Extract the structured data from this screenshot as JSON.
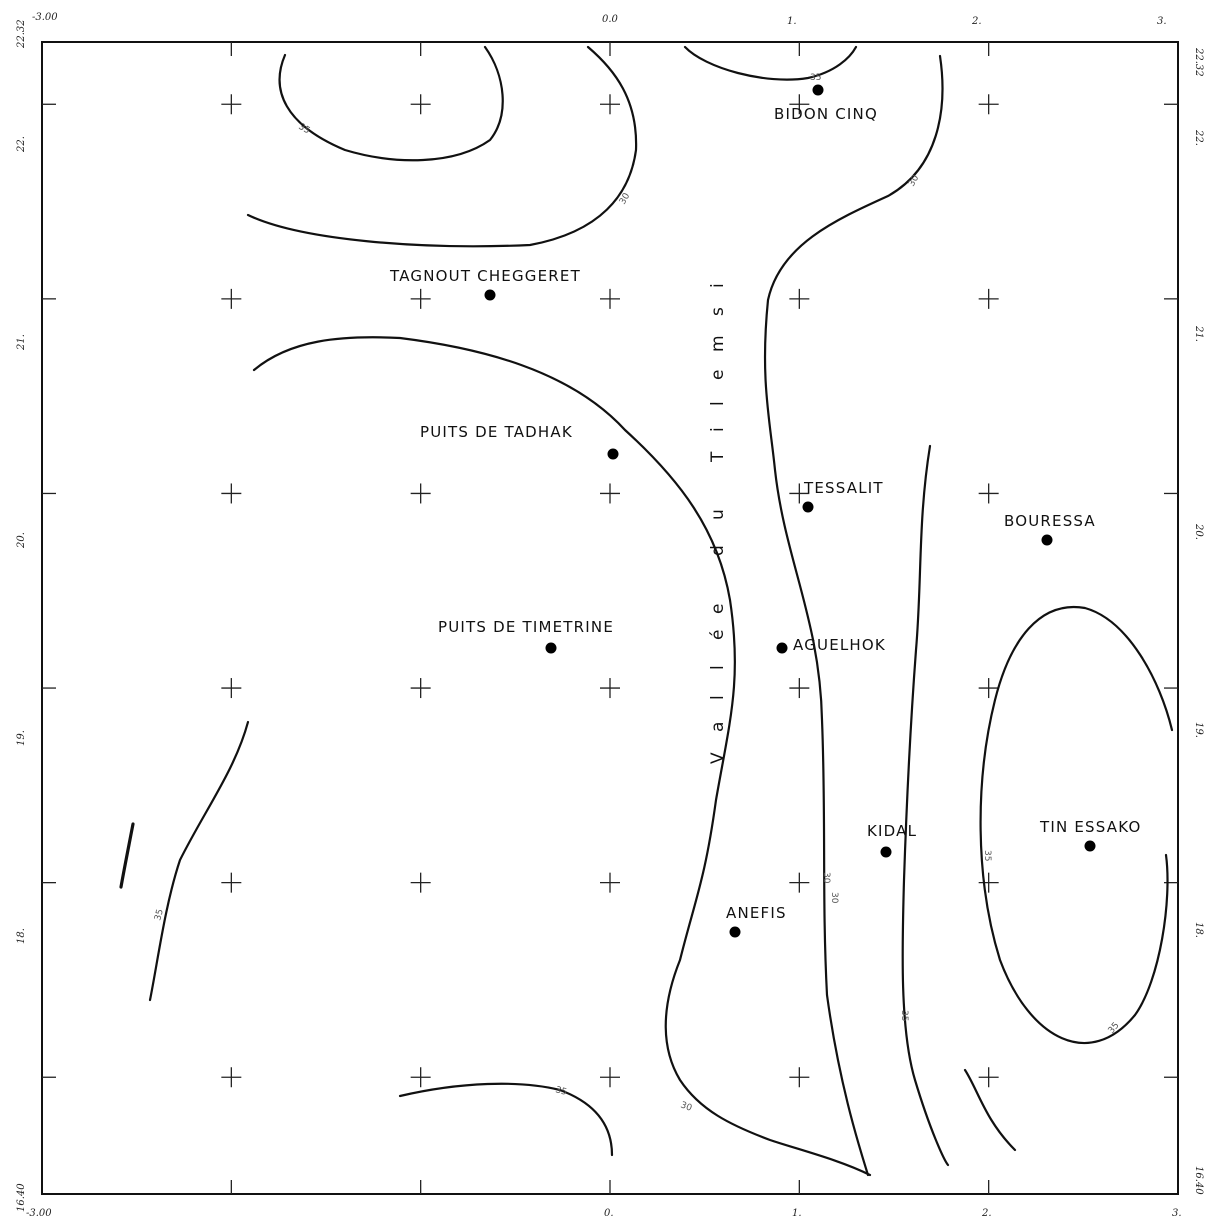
{
  "map": {
    "bounds": {
      "lon_min": -3.0,
      "lon_max": 3.0,
      "lat_min": 16.4,
      "lat_max": 22.32
    },
    "graticule": {
      "lons": [
        -2,
        -1,
        0,
        1,
        2
      ],
      "lats": [
        17,
        18,
        19,
        20,
        21,
        22
      ]
    },
    "axis_labels": {
      "top": [
        "-3.00",
        "0.0",
        "1.",
        "2.",
        "3."
      ],
      "bottom": [
        "-3.00",
        "0.",
        "1.",
        "2.",
        "3."
      ],
      "left": [
        "22.32",
        "22.",
        "21.",
        "20.",
        "19.",
        "18.",
        "16.40"
      ],
      "right": [
        "22.32",
        "22.",
        "21.",
        "20.",
        "19.",
        "18.",
        "16.40"
      ]
    },
    "valley_label": [
      "V",
      "a",
      "l",
      "l",
      "é",
      "e",
      "d",
      "u",
      "T",
      "i",
      "l",
      "e",
      "m",
      "s",
      "i"
    ],
    "places": [
      {
        "name": "BIDON CINQ",
        "lon": 1.09,
        "lat": 22.1
      },
      {
        "name": "TAGNOUT CHEGGERET",
        "lon": -0.65,
        "lat": 21.22
      },
      {
        "name": "PUITS DE TADHAK",
        "lon": -0.02,
        "lat": 20.42
      },
      {
        "name": "TESSALIT",
        "lon": 1.0,
        "lat": 20.16
      },
      {
        "name": "BOURESSA",
        "lon": 2.3,
        "lat": 19.99
      },
      {
        "name": "PUITS DE TIMETRINE",
        "lon": -0.33,
        "lat": 19.45
      },
      {
        "name": "AGUELHOK",
        "lon": 0.87,
        "lat": 19.45
      },
      {
        "name": "KIDAL",
        "lon": 1.43,
        "lat": 18.43
      },
      {
        "name": "TIN ESSAKO",
        "lon": 2.5,
        "lat": 18.47
      },
      {
        "name": "ANEFIS",
        "lon": 0.62,
        "lat": 18.02
      }
    ],
    "contour_labels": [
      "35",
      "30",
      "30",
      "35",
      "30",
      "35",
      "30",
      "35",
      "35",
      "30",
      "35",
      "35"
    ]
  }
}
